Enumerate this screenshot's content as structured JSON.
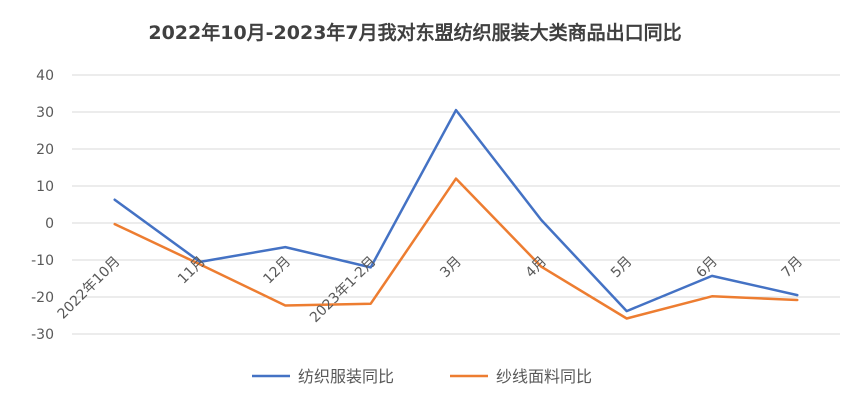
{
  "chart_data": {
    "type": "line",
    "title": "2022年10月-2023年7月我对东盟纺织服装大类商品出口同比",
    "xlabel": "",
    "ylabel": "",
    "categories": [
      "2022年10月",
      "11月",
      "12月",
      "2023年1-2月",
      "3月",
      "4月",
      "5月",
      "6月",
      "7月"
    ],
    "ylim": [
      -30,
      40
    ],
    "yticks": [
      -30,
      -20,
      -10,
      0,
      10,
      20,
      30,
      40
    ],
    "grid": true,
    "legend_position": "bottom",
    "series": [
      {
        "name": "纺织服装同比",
        "color": "#4472C4",
        "values": [
          6.3,
          -10.5,
          -6.5,
          -12.0,
          30.5,
          0.8,
          -23.8,
          -14.3,
          -19.5
        ]
      },
      {
        "name": "纱线面料同比",
        "color": "#ED7D31",
        "values": [
          -0.3,
          -11.2,
          -22.3,
          -21.8,
          12.0,
          -11.8,
          -25.8,
          -19.8,
          -20.8
        ]
      }
    ]
  }
}
